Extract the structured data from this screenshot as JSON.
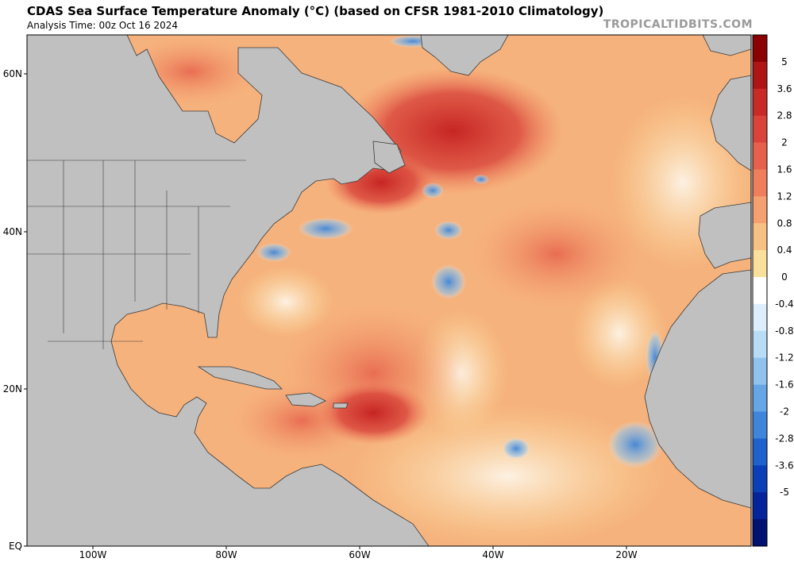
{
  "header": {
    "title": "CDAS Sea Surface Temperature Anomaly (°C) (based on CFSR 1981-2010 Climatology)",
    "subtitle": "Analysis Time: 00z Oct 16 2024",
    "brand": "TROPICALTIDBITS.COM"
  },
  "axes": {
    "lat_labels": [
      "60N",
      "40N",
      "20N",
      "EQ"
    ],
    "lon_labels": [
      "100W",
      "80W",
      "60W",
      "40W",
      "20W"
    ]
  },
  "colorbar": {
    "labels": [
      "5",
      "3.6",
      "2.8",
      "2",
      "1.6",
      "1.2",
      "0.8",
      "0.4",
      "0",
      "-0.4",
      "-0.8",
      "-1.2",
      "-1.6",
      "-2",
      "-2.8",
      "-3.6",
      "-5"
    ],
    "colors": [
      "#8b0000",
      "#b01515",
      "#c82a25",
      "#d9433a",
      "#e6614b",
      "#ee7e5c",
      "#f4a071",
      "#f8c184",
      "#fbe09d",
      "#ffffff",
      "#dceefb",
      "#b8dcf6",
      "#8fc3ee",
      "#66a6e4",
      "#3f86da",
      "#1f62cc",
      "#0b3fb8",
      "#06249a",
      "#001170"
    ]
  },
  "colors": {
    "land": "#c0c0c0",
    "ocean_base": "#f6b27c"
  }
}
